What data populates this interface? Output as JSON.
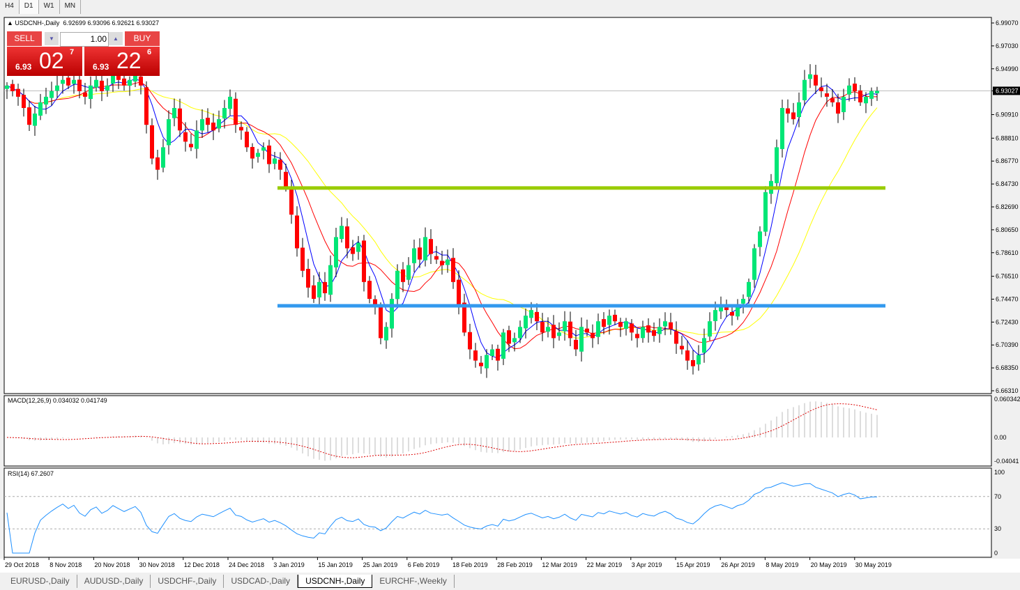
{
  "timeframes": [
    "H4",
    "D1",
    "W1",
    "MN"
  ],
  "active_timeframe": "D1",
  "header": {
    "symbol": "USDCNH-,Daily",
    "ohlc": "6.92699 6.93096 6.92621 6.93027"
  },
  "trade": {
    "sell_label": "SELL",
    "buy_label": "BUY",
    "lot": "1.00",
    "sell_big": "6.93",
    "sell_digits": "02",
    "sell_pip": "7",
    "buy_big": "6.93",
    "buy_digits": "22",
    "buy_pip": "6"
  },
  "macd_label": "MACD(12,26,9) 0.034032 0.041749",
  "rsi_label": "RSI(14) 67.2607",
  "tabs": [
    "EURUSD-,Daily",
    "AUDUSD-,Daily",
    "USDCHF-,Daily",
    "USDCAD-,Daily",
    "USDCNH-,Daily",
    "EURCHF-,Weekly"
  ],
  "active_tab": "USDCNH-,Daily",
  "chart_data": {
    "type": "candlestick",
    "price_ticks": [
      "6.99070",
      "6.97030",
      "6.94990",
      "6.93027",
      "6.90910",
      "6.88810",
      "6.86770",
      "6.84730",
      "6.82690",
      "6.80650",
      "6.78610",
      "6.76510",
      "6.74470",
      "6.72430",
      "6.70390",
      "6.68350",
      "6.66310"
    ],
    "current_price": "6.93027",
    "ylim": [
      6.6631,
      6.9907
    ],
    "macd_ticks": [
      "0.060342",
      "0.00",
      "-0.04041"
    ],
    "rsi_ticks": [
      "100",
      "70",
      "30",
      "0"
    ],
    "date_ticks": [
      "29 Oct 2018",
      "8 Nov 2018",
      "20 Nov 2018",
      "30 Nov 2018",
      "12 Dec 2018",
      "24 Dec 2018",
      "3 Jan 2019",
      "15 Jan 2019",
      "25 Jan 2019",
      "6 Feb 2019",
      "18 Feb 2019",
      "28 Feb 2019",
      "12 Mar 2019",
      "22 Mar 2019",
      "3 Apr 2019",
      "15 Apr 2019",
      "26 Apr 2019",
      "8 May 2019",
      "20 May 2019",
      "30 May 2019"
    ],
    "horizontal_lines": [
      {
        "price": 6.8437,
        "color": "#99cc00"
      },
      {
        "price": 6.7388,
        "color": "#3399ee"
      }
    ],
    "colors": {
      "bull": "#00e676",
      "bear": "#ff0000",
      "ma_fast": "#0000ff",
      "ma_mid": "#ff0000",
      "ma_slow": "#ffff00"
    },
    "close": [
      6.935,
      6.93,
      6.925,
      6.915,
      6.9,
      6.91,
      6.92,
      6.925,
      6.93,
      6.935,
      6.94,
      6.935,
      6.94,
      6.93,
      6.925,
      6.935,
      6.94,
      6.93,
      6.935,
      6.945,
      6.94,
      6.935,
      6.94,
      6.945,
      6.935,
      6.9,
      6.87,
      6.86,
      6.88,
      6.905,
      6.915,
      6.895,
      6.885,
      6.88,
      6.895,
      6.905,
      6.9,
      6.895,
      6.905,
      6.915,
      6.925,
      6.9,
      6.895,
      6.88,
      6.87,
      6.875,
      6.88,
      6.865,
      6.87,
      6.86,
      6.845,
      6.82,
      6.79,
      6.77,
      6.755,
      6.745,
      6.76,
      6.75,
      6.775,
      6.8,
      6.81,
      6.79,
      6.785,
      6.795,
      6.76,
      6.745,
      6.74,
      6.71,
      6.72,
      6.745,
      6.77,
      6.76,
      6.775,
      6.79,
      6.78,
      6.8,
      6.785,
      6.78,
      6.775,
      6.78,
      6.76,
      6.74,
      6.715,
      6.7,
      6.69,
      6.685,
      6.695,
      6.7,
      6.69,
      6.715,
      6.705,
      6.71,
      6.72,
      6.73,
      6.735,
      6.725,
      6.715,
      6.72,
      6.71,
      6.715,
      6.725,
      6.71,
      6.7,
      6.72,
      6.715,
      6.71,
      6.725,
      6.72,
      6.73,
      6.725,
      6.72,
      6.725,
      6.715,
      6.71,
      6.72,
      6.715,
      6.712,
      6.72,
      6.725,
      6.718,
      6.705,
      6.7,
      6.69,
      6.685,
      6.695,
      6.71,
      6.725,
      6.735,
      6.74,
      6.735,
      6.73,
      6.74,
      6.745,
      6.76,
      6.79,
      6.805,
      6.84,
      6.85,
      6.88,
      6.915,
      6.91,
      6.905,
      6.92,
      6.94,
      6.945,
      6.935,
      6.93,
      6.925,
      6.92,
      6.91,
      6.925,
      6.935,
      6.93,
      6.92,
      6.925,
      6.93,
      6.93027
    ]
  }
}
